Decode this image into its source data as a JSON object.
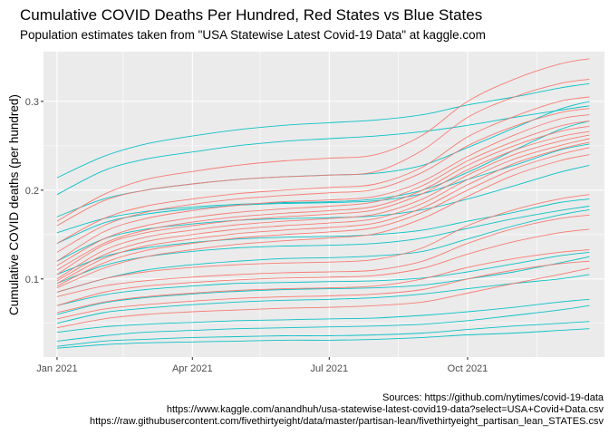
{
  "header": {
    "title": "Cumulative COVID Deaths Per Hundred, Red States vs Blue States",
    "subtitle": "Population estimates taken from \"USA Statewise Latest Covid-19 Data\" at kaggle.com"
  },
  "captions": [
    "Sources: https://github.com/nytimes/covid-19-data",
    "https://www.kaggle.com/anandhuh/usa-statewise-latest-covid19-data?select=USA+Covid+Data.csv",
    "https://raw.githubusercontent.com/fivethirtyeight/data/master/partisan-lean/fivethirtyeight_partisan_lean_STATES.csv"
  ],
  "colors": {
    "red": "#F8766D",
    "blue": "#00BFC4",
    "panel": "#EBEBEB",
    "grid": "#FFFFFF"
  },
  "chart_data": {
    "type": "line",
    "title": "Cumulative COVID Deaths Per Hundred, Red States vs Blue States",
    "subtitle": "Population estimates taken from \"USA Statewise Latest Covid-19 Data\" at kaggle.com",
    "xlabel": "",
    "ylabel": "Cumulative COVID deaths (per hundred)",
    "x_ticks": [
      "Jan 2021",
      "Apr 2021",
      "Jul 2021",
      "Oct 2021"
    ],
    "y_ticks": [
      "0.1",
      "0.2",
      "0.3"
    ],
    "xlim": [
      "2020-12-23",
      "2021-12-31"
    ],
    "ylim": [
      0.012,
      0.356
    ],
    "grid": true,
    "legend": "none",
    "x": [
      "2021-01-01",
      "2021-02-01",
      "2021-03-01",
      "2021-04-01",
      "2021-05-01",
      "2021-06-01",
      "2021-07-01",
      "2021-08-01",
      "2021-09-01",
      "2021-10-01",
      "2021-11-01",
      "2021-12-01",
      "2021-12-21"
    ],
    "series": [
      {
        "color": "blue",
        "values": [
          0.214,
          0.238,
          0.252,
          0.261,
          0.268,
          0.273,
          0.276,
          0.279,
          0.285,
          0.296,
          0.305,
          0.315,
          0.32
        ]
      },
      {
        "color": "blue",
        "values": [
          0.195,
          0.222,
          0.235,
          0.243,
          0.25,
          0.255,
          0.258,
          0.261,
          0.266,
          0.273,
          0.282,
          0.29,
          0.295
        ]
      },
      {
        "color": "blue",
        "values": [
          0.17,
          0.19,
          0.2,
          0.207,
          0.212,
          0.215,
          0.217,
          0.219,
          0.228,
          0.248,
          0.27,
          0.291,
          0.3
        ]
      },
      {
        "color": "blue",
        "values": [
          0.152,
          0.168,
          0.176,
          0.181,
          0.184,
          0.186,
          0.187,
          0.19,
          0.2,
          0.22,
          0.245,
          0.268,
          0.278
        ]
      },
      {
        "color": "blue",
        "values": [
          0.14,
          0.163,
          0.173,
          0.179,
          0.183,
          0.185,
          0.186,
          0.188,
          0.196,
          0.212,
          0.228,
          0.245,
          0.252
        ]
      },
      {
        "color": "blue",
        "values": [
          0.12,
          0.145,
          0.156,
          0.162,
          0.166,
          0.168,
          0.169,
          0.171,
          0.178,
          0.19,
          0.205,
          0.22,
          0.228
        ]
      },
      {
        "color": "blue",
        "values": [
          0.105,
          0.125,
          0.135,
          0.141,
          0.145,
          0.147,
          0.148,
          0.15,
          0.155,
          0.165,
          0.175,
          0.186,
          0.19
        ]
      },
      {
        "color": "blue",
        "values": [
          0.095,
          0.115,
          0.125,
          0.131,
          0.135,
          0.137,
          0.138,
          0.14,
          0.146,
          0.157,
          0.168,
          0.177,
          0.182
        ]
      },
      {
        "color": "blue",
        "values": [
          0.085,
          0.1,
          0.11,
          0.116,
          0.12,
          0.123,
          0.124,
          0.126,
          0.131,
          0.145,
          0.16,
          0.172,
          0.178
        ]
      },
      {
        "color": "blue",
        "values": [
          0.07,
          0.082,
          0.088,
          0.092,
          0.095,
          0.096,
          0.097,
          0.098,
          0.101,
          0.108,
          0.117,
          0.126,
          0.13
        ]
      },
      {
        "color": "blue",
        "values": [
          0.06,
          0.073,
          0.079,
          0.083,
          0.086,
          0.088,
          0.089,
          0.09,
          0.093,
          0.1,
          0.108,
          0.118,
          0.125
        ]
      },
      {
        "color": "blue",
        "values": [
          0.05,
          0.062,
          0.067,
          0.071,
          0.074,
          0.076,
          0.077,
          0.079,
          0.083,
          0.089,
          0.095,
          0.1,
          0.105
        ]
      },
      {
        "color": "blue",
        "values": [
          0.04,
          0.046,
          0.049,
          0.051,
          0.053,
          0.054,
          0.055,
          0.056,
          0.059,
          0.063,
          0.068,
          0.074,
          0.077
        ]
      },
      {
        "color": "blue",
        "values": [
          0.03,
          0.036,
          0.04,
          0.042,
          0.044,
          0.045,
          0.046,
          0.047,
          0.049,
          0.053,
          0.059,
          0.065,
          0.07
        ]
      },
      {
        "color": "blue",
        "values": [
          0.024,
          0.03,
          0.032,
          0.034,
          0.035,
          0.036,
          0.036,
          0.037,
          0.039,
          0.043,
          0.047,
          0.05,
          0.052
        ]
      },
      {
        "color": "blue",
        "values": [
          0.022,
          0.026,
          0.028,
          0.029,
          0.03,
          0.031,
          0.031,
          0.032,
          0.034,
          0.037,
          0.039,
          0.042,
          0.044
        ]
      },
      {
        "color": "red",
        "values": [
          0.165,
          0.195,
          0.212,
          0.221,
          0.228,
          0.233,
          0.236,
          0.24,
          0.262,
          0.3,
          0.325,
          0.342,
          0.348
        ]
      },
      {
        "color": "red",
        "values": [
          0.16,
          0.188,
          0.2,
          0.207,
          0.212,
          0.215,
          0.217,
          0.221,
          0.245,
          0.282,
          0.305,
          0.32,
          0.325
        ]
      },
      {
        "color": "red",
        "values": [
          0.14,
          0.168,
          0.182,
          0.19,
          0.196,
          0.2,
          0.203,
          0.207,
          0.226,
          0.26,
          0.283,
          0.3,
          0.305
        ]
      },
      {
        "color": "red",
        "values": [
          0.13,
          0.16,
          0.175,
          0.184,
          0.19,
          0.194,
          0.197,
          0.201,
          0.22,
          0.25,
          0.272,
          0.287,
          0.292
        ]
      },
      {
        "color": "red",
        "values": [
          0.12,
          0.153,
          0.168,
          0.177,
          0.183,
          0.187,
          0.189,
          0.193,
          0.21,
          0.238,
          0.262,
          0.28,
          0.285
        ]
      },
      {
        "color": "red",
        "values": [
          0.115,
          0.145,
          0.16,
          0.169,
          0.175,
          0.179,
          0.182,
          0.187,
          0.205,
          0.233,
          0.255,
          0.272,
          0.278
        ]
      },
      {
        "color": "red",
        "values": [
          0.11,
          0.14,
          0.155,
          0.164,
          0.17,
          0.174,
          0.177,
          0.182,
          0.2,
          0.228,
          0.25,
          0.266,
          0.272
        ]
      },
      {
        "color": "red",
        "values": [
          0.105,
          0.138,
          0.152,
          0.16,
          0.166,
          0.17,
          0.173,
          0.178,
          0.196,
          0.223,
          0.245,
          0.26,
          0.266
        ]
      },
      {
        "color": "red",
        "values": [
          0.1,
          0.132,
          0.147,
          0.155,
          0.161,
          0.165,
          0.168,
          0.173,
          0.19,
          0.217,
          0.24,
          0.255,
          0.262
        ]
      },
      {
        "color": "red",
        "values": [
          0.098,
          0.127,
          0.142,
          0.15,
          0.156,
          0.16,
          0.163,
          0.168,
          0.185,
          0.212,
          0.235,
          0.25,
          0.258
        ]
      },
      {
        "color": "red",
        "values": [
          0.095,
          0.123,
          0.137,
          0.145,
          0.151,
          0.155,
          0.158,
          0.163,
          0.18,
          0.206,
          0.23,
          0.246,
          0.254
        ]
      },
      {
        "color": "red",
        "values": [
          0.092,
          0.118,
          0.132,
          0.14,
          0.146,
          0.15,
          0.153,
          0.158,
          0.175,
          0.2,
          0.224,
          0.24,
          0.248
        ]
      },
      {
        "color": "red",
        "values": [
          0.09,
          0.112,
          0.125,
          0.133,
          0.139,
          0.143,
          0.146,
          0.151,
          0.168,
          0.193,
          0.217,
          0.233,
          0.24
        ]
      },
      {
        "color": "red",
        "values": [
          0.085,
          0.1,
          0.108,
          0.113,
          0.116,
          0.118,
          0.119,
          0.122,
          0.135,
          0.16,
          0.178,
          0.19,
          0.195
        ]
      },
      {
        "color": "red",
        "values": [
          0.08,
          0.092,
          0.098,
          0.102,
          0.105,
          0.107,
          0.108,
          0.11,
          0.12,
          0.14,
          0.157,
          0.168,
          0.172
        ]
      },
      {
        "color": "red",
        "values": [
          0.07,
          0.085,
          0.092,
          0.096,
          0.099,
          0.101,
          0.102,
          0.104,
          0.112,
          0.128,
          0.142,
          0.152,
          0.156
        ]
      },
      {
        "color": "red",
        "values": [
          0.062,
          0.074,
          0.08,
          0.084,
          0.087,
          0.089,
          0.09,
          0.092,
          0.1,
          0.113,
          0.123,
          0.13,
          0.133
        ]
      },
      {
        "color": "red",
        "values": [
          0.055,
          0.066,
          0.071,
          0.075,
          0.078,
          0.08,
          0.081,
          0.083,
          0.088,
          0.1,
          0.11,
          0.117,
          0.12
        ]
      },
      {
        "color": "red",
        "values": [
          0.045,
          0.055,
          0.06,
          0.063,
          0.065,
          0.067,
          0.068,
          0.07,
          0.074,
          0.084,
          0.095,
          0.105,
          0.112
        ]
      }
    ]
  }
}
